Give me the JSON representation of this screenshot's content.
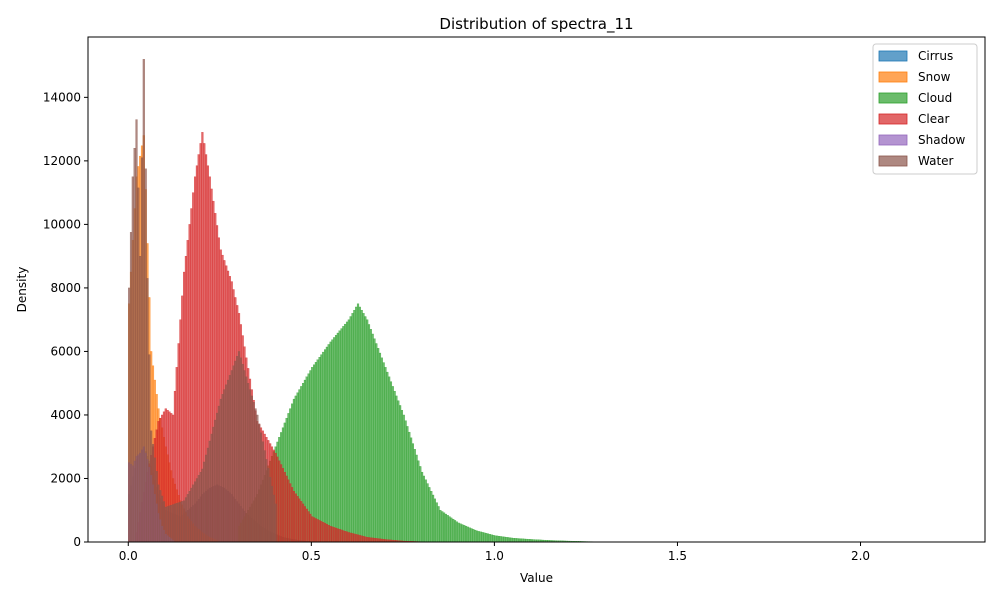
{
  "chart_data": {
    "type": "histogram",
    "title": "Distribution of spectra_11",
    "xlabel": "Value",
    "ylabel": "Density",
    "xlim": [
      -0.11,
      2.34
    ],
    "ylim": [
      0,
      15900
    ],
    "xticks": [
      0.0,
      0.5,
      1.0,
      1.5,
      2.0
    ],
    "xtick_labels": [
      "0.0",
      "0.5",
      "1.0",
      "1.5",
      "2.0"
    ],
    "yticks": [
      0,
      2000,
      4000,
      6000,
      8000,
      10000,
      12000,
      14000
    ],
    "ytick_labels": [
      "0",
      "2000",
      "4000",
      "6000",
      "8000",
      "10000",
      "12000",
      "14000"
    ],
    "grid": false,
    "legend_position": "top-right",
    "series": [
      {
        "name": "Cirrus",
        "color": "#1f77b4",
        "x": [
          0.0,
          0.02,
          0.04,
          0.06,
          0.08,
          0.1,
          0.12,
          0.14,
          0.16,
          0.18,
          0.2,
          0.22,
          0.24,
          0.26,
          0.28,
          0.3,
          0.32,
          0.34,
          0.36,
          0.38,
          0.4,
          0.42,
          0.44,
          0.46,
          0.48,
          0.5
        ],
        "density": [
          1500,
          2600,
          3000,
          2400,
          1500,
          1000,
          900,
          800,
          1000,
          1200,
          1500,
          1700,
          1800,
          1700,
          1500,
          1200,
          900,
          700,
          500,
          350,
          250,
          150,
          100,
          60,
          30,
          10
        ]
      },
      {
        "name": "Snow",
        "color": "#ff7f0e",
        "x": [
          0.0,
          0.02,
          0.04,
          0.06,
          0.08,
          0.1,
          0.12,
          0.14,
          0.16,
          0.18,
          0.2,
          0.22,
          0.24
        ],
        "density": [
          7500,
          11500,
          12800,
          6000,
          4200,
          3000,
          2000,
          1300,
          800,
          500,
          300,
          150,
          50
        ]
      },
      {
        "name": "Cloud",
        "color": "#2ca02c",
        "x": [
          0.3,
          0.35,
          0.4,
          0.45,
          0.5,
          0.55,
          0.6,
          0.625,
          0.65,
          0.7,
          0.75,
          0.8,
          0.85,
          0.9,
          0.95,
          1.0,
          1.05,
          1.1,
          1.15,
          1.2,
          1.25,
          1.3
        ],
        "density": [
          500,
          1500,
          3000,
          4500,
          5500,
          6300,
          7000,
          7500,
          7000,
          5500,
          4000,
          2200,
          1000,
          600,
          350,
          200,
          120,
          80,
          50,
          30,
          15,
          5
        ]
      },
      {
        "name": "Clear",
        "color": "#d62728",
        "x": [
          0.02,
          0.05,
          0.08,
          0.1,
          0.12,
          0.15,
          0.18,
          0.2,
          0.22,
          0.25,
          0.28,
          0.3,
          0.32,
          0.35,
          0.4,
          0.45,
          0.5,
          0.55,
          0.6,
          0.65,
          0.7,
          0.75,
          0.8
        ],
        "density": [
          300,
          2200,
          3800,
          4200,
          4000,
          8500,
          11500,
          12900,
          11500,
          9200,
          8200,
          7200,
          5800,
          3800,
          2800,
          1600,
          800,
          500,
          300,
          150,
          80,
          30,
          10
        ]
      },
      {
        "name": "Shadow",
        "color": "#9467bd",
        "x": [
          0.0,
          0.01,
          0.02,
          0.03,
          0.04,
          0.05,
          0.06,
          0.07,
          0.08,
          0.09,
          0.1,
          0.12
        ],
        "density": [
          2500,
          2400,
          2700,
          2800,
          3000,
          2600,
          2100,
          1500,
          900,
          500,
          250,
          50
        ]
      },
      {
        "name": "Water",
        "color": "#8c564b",
        "x": [
          0.0,
          0.01,
          0.02,
          0.03,
          0.04,
          0.05,
          0.06,
          0.08,
          0.1,
          0.15,
          0.2,
          0.25,
          0.3,
          0.35,
          0.4
        ],
        "density": [
          8000,
          11500,
          13300,
          9000,
          15200,
          8300,
          3500,
          1800,
          1100,
          1300,
          2300,
          4500,
          6000,
          4000,
          1200
        ]
      }
    ]
  }
}
